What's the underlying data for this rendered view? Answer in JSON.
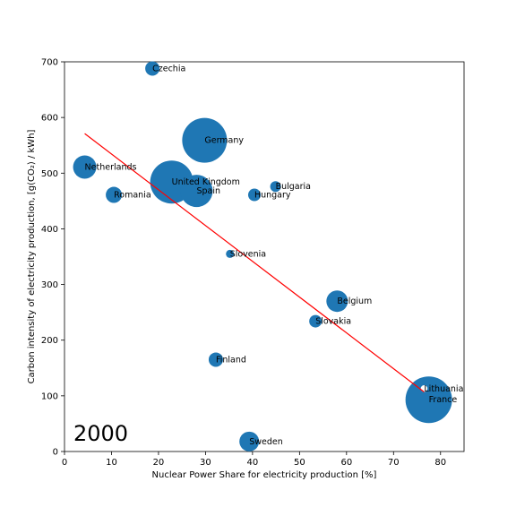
{
  "chart_data": {
    "type": "scatter",
    "title": "",
    "xlabel": "Nuclear Power Share for electricity production [%]",
    "ylabel": "Carbon intensity of electricity production, [g(CO₂) / kWh]",
    "annotation": "2000",
    "xlim": [
      0,
      85
    ],
    "ylim": [
      0,
      700
    ],
    "xticks": [
      "0",
      "10",
      "20",
      "30",
      "40",
      "50",
      "60",
      "70",
      "80"
    ],
    "yticks": [
      "0",
      "100",
      "200",
      "300",
      "400",
      "500",
      "600",
      "700"
    ],
    "grid": false,
    "marker_color": "#1f77b4",
    "trend_color": "#ff0000",
    "points": [
      {
        "label": "Czechia",
        "x": 18.7,
        "y": 688,
        "size": 16
      },
      {
        "label": "Germany",
        "x": 29.8,
        "y": 559,
        "size": 50
      },
      {
        "label": "Netherlands",
        "x": 4.3,
        "y": 511,
        "size": 26
      },
      {
        "label": "United Kingdom",
        "x": 22.8,
        "y": 484,
        "size": 48
      },
      {
        "label": "Spain",
        "x": 28.1,
        "y": 468,
        "size": 36
      },
      {
        "label": "Romania",
        "x": 10.5,
        "y": 461,
        "size": 18
      },
      {
        "label": "Bulgaria",
        "x": 44.9,
        "y": 476,
        "size": 12
      },
      {
        "label": "Hungary",
        "x": 40.4,
        "y": 461,
        "size": 14
      },
      {
        "label": "Slovenia",
        "x": 35.2,
        "y": 355,
        "size": 9
      },
      {
        "label": "Belgium",
        "x": 58.0,
        "y": 270,
        "size": 24
      },
      {
        "label": "Slovakia",
        "x": 53.4,
        "y": 234,
        "size": 14
      },
      {
        "label": "Finland",
        "x": 32.2,
        "y": 165,
        "size": 16
      },
      {
        "label": "Lithuania",
        "x": 76.5,
        "y": 113,
        "size": 9,
        "hollow": true
      },
      {
        "label": "France",
        "x": 77.5,
        "y": 93,
        "size": 52
      },
      {
        "label": "Sweden",
        "x": 39.3,
        "y": 18,
        "size": 22
      }
    ],
    "trend_line": {
      "x": [
        4.3,
        76.5
      ],
      "y": [
        571,
        107
      ]
    }
  }
}
